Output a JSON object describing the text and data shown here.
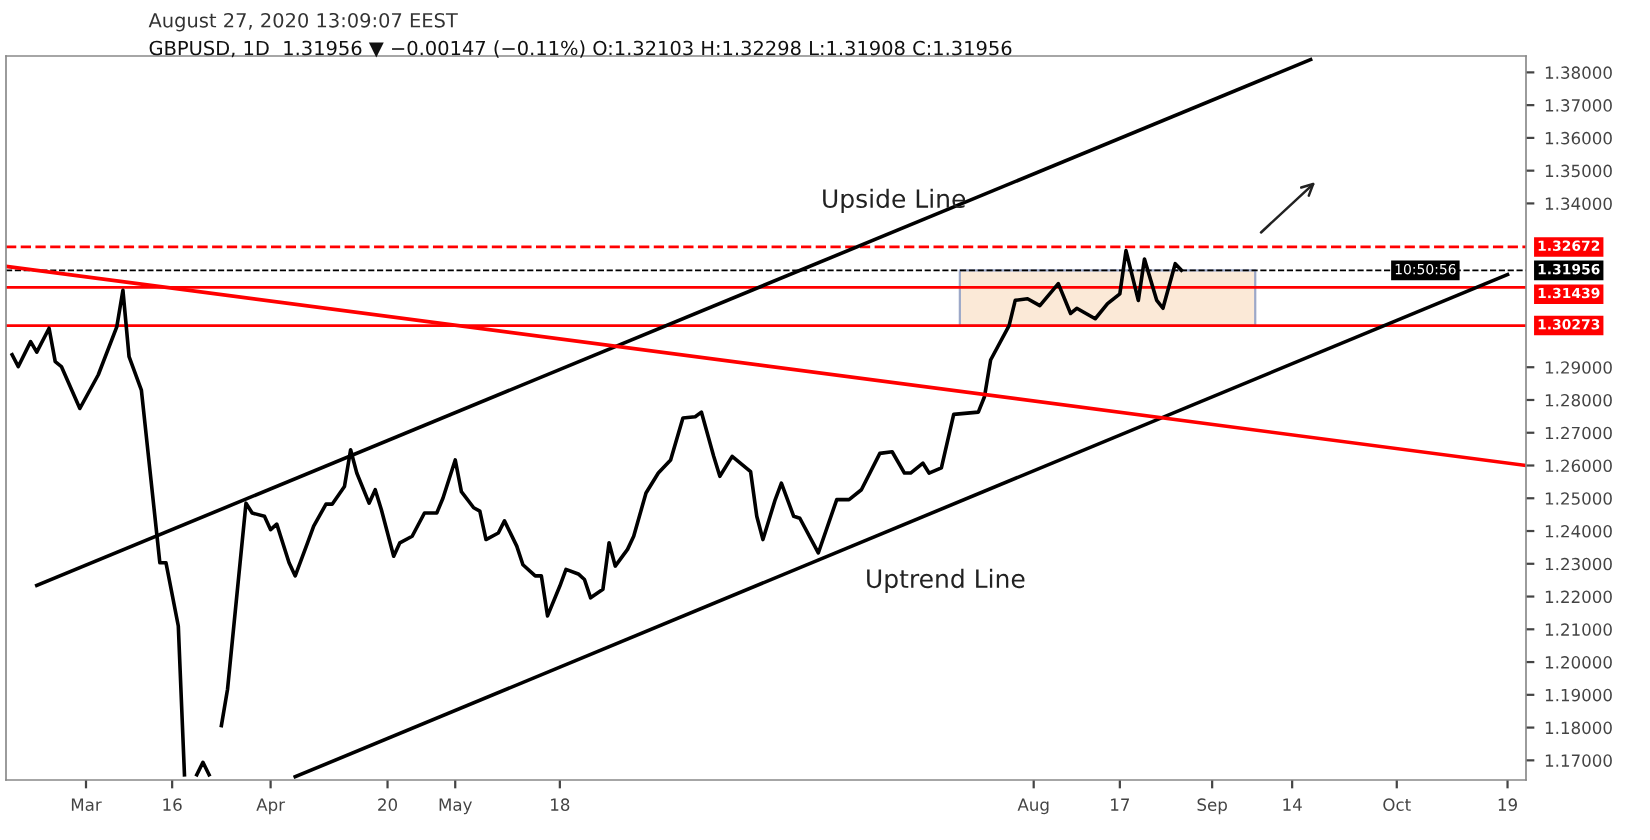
{
  "chart_data": {
    "type": "line",
    "title": "GBPUSD, 1D  1.31956 ▼ −0.00147 (−0.11%) O:1.32103 H:1.32298 L:1.31908 C:1.31956",
    "subtitle": "August 27, 2020 13:09:07 EEST",
    "series": [
      {
        "color": "#000000",
        "x": [
          "2020-02-19",
          "2020-02-20",
          "2020-02-22",
          "2020-02-23",
          "2020-02-25",
          "2020-02-26",
          "2020-02-27",
          "2020-03-01",
          "2020-03-04",
          "2020-03-07",
          "2020-03-08",
          "2020-03-09",
          "2020-03-11",
          "2020-03-14",
          "2020-03-15",
          "2020-03-17",
          "2020-03-18",
          "2020-03-19",
          "2020-03-20",
          "2020-03-21",
          "2020-03-22",
          "2020-03-23",
          "2020-03-24",
          "2020-03-25",
          "2020-03-28",
          "2020-03-29",
          "2020-03-31",
          "2020-04-01",
          "2020-04-02",
          "2020-04-04",
          "2020-04-05",
          "2020-04-07",
          "2020-04-08",
          "2020-04-10",
          "2020-04-11",
          "2020-04-13",
          "2020-04-14",
          "2020-04-15",
          "2020-04-17",
          "2020-04-18",
          "2020-04-19",
          "2020-04-21",
          "2020-04-22",
          "2020-04-24",
          "2020-04-26",
          "2020-04-28",
          "2020-04-29",
          "2020-05-01",
          "2020-05-02",
          "2020-05-04",
          "2020-05-05",
          "2020-05-06",
          "2020-05-08",
          "2020-05-09",
          "2020-05-11",
          "2020-05-12",
          "2020-05-14",
          "2020-05-15",
          "2020-05-16",
          "2020-05-18",
          "2020-05-19",
          "2020-05-21",
          "2020-05-22",
          "2020-05-23",
          "2020-05-25",
          "2020-05-26",
          "2020-05-27",
          "2020-05-29",
          "2020-05-30",
          "2020-06-01",
          "2020-06-03",
          "2020-06-05",
          "2020-06-07",
          "2020-06-09",
          "2020-06-10",
          "2020-06-12",
          "2020-06-13",
          "2020-06-15",
          "2020-06-18",
          "2020-06-19",
          "2020-06-20",
          "2020-06-22",
          "2020-06-23",
          "2020-06-25",
          "2020-06-26",
          "2020-06-29",
          "2020-07-02",
          "2020-07-04",
          "2020-07-06",
          "2020-07-09",
          "2020-07-11",
          "2020-07-13",
          "2020-07-14",
          "2020-07-16",
          "2020-07-17",
          "2020-07-19",
          "2020-07-21",
          "2020-07-25",
          "2020-07-26",
          "2020-07-27",
          "2020-07-30",
          "2020-07-31",
          "2020-08-02",
          "2020-08-04",
          "2020-08-07",
          "2020-08-09",
          "2020-08-10",
          "2020-08-13",
          "2020-08-15",
          "2020-08-17",
          "2020-08-18",
          "2020-08-20",
          "2020-08-21",
          "2020-08-23",
          "2020-08-24",
          "2020-08-26",
          "2020-08-27"
        ],
        "values": [
          1.2938,
          1.2902,
          1.2978,
          1.2946,
          1.3019,
          1.2917,
          1.2902,
          1.2774,
          1.2877,
          1.3023,
          1.3135,
          1.2932,
          1.283,
          1.2303,
          1.2303,
          1.211,
          1.1656,
          null,
          1.1656,
          1.1694,
          1.1656,
          null,
          1.1806,
          1.1917,
          1.2485,
          1.2455,
          1.2445,
          1.2404,
          1.2421,
          1.2303,
          1.2263,
          1.2364,
          1.2415,
          1.2482,
          1.2482,
          1.2536,
          1.2648,
          1.2577,
          1.2485,
          1.2526,
          1.2465,
          1.2323,
          1.2364,
          1.2384,
          1.2455,
          1.2455,
          1.25,
          1.2617,
          1.252,
          1.2471,
          1.2461,
          1.2374,
          1.2394,
          1.2431,
          1.2354,
          1.2297,
          1.2263,
          1.2263,
          1.2141,
          1.2232,
          1.2283,
          1.2269,
          1.2252,
          1.2196,
          1.2222,
          1.2364,
          1.2293,
          1.2344,
          1.2384,
          1.2516,
          1.2577,
          1.2617,
          1.2745,
          1.2749,
          1.2763,
          1.2628,
          1.2567,
          1.2628,
          1.2581,
          1.2445,
          1.2374,
          1.2496,
          1.2546,
          1.2445,
          1.2439,
          1.2333,
          1.2496,
          1.2496,
          1.2526,
          1.2637,
          1.2642,
          1.2577,
          1.2577,
          1.2607,
          1.2577,
          1.2593,
          1.2756,
          1.2763,
          1.281,
          1.2922,
          1.3027,
          1.3104,
          1.3109,
          1.3088,
          1.3155,
          1.3064,
          1.308,
          1.3048,
          1.3094,
          1.3124,
          1.3256,
          1.3104,
          1.323,
          1.3104,
          1.308,
          1.3216,
          1.3196
        ]
      },
      {
        "type": "line",
        "color": "#000000",
        "x": [
          "2020-02-23",
          "2020-09-17"
        ],
        "values": [
          1.2234,
          1.3839
        ]
      },
      {
        "type": "line",
        "color": "#000000",
        "x": [
          "2020-04-05",
          "2020-10-19"
        ],
        "values": [
          1.165,
          1.3183
        ]
      },
      {
        "type": "line",
        "color": "#ff0000",
        "x": [
          "2020-02-18",
          "2020-10-22"
        ],
        "values": [
          1.3208,
          1.26
        ]
      }
    ],
    "xlim": [
      "2020-02-18",
      "2020-10-22"
    ],
    "xticks": [
      {
        "value": "2020-03-02",
        "label": "Mar"
      },
      {
        "value": "2020-03-16",
        "label": "16"
      },
      {
        "value": "2020-04-01",
        "label": "Apr"
      },
      {
        "value": "2020-04-20",
        "label": "20"
      },
      {
        "value": "2020-05-01",
        "label": "May"
      },
      {
        "value": "2020-05-18",
        "label": "18"
      },
      {
        "value": "2020-08-03",
        "label": "Aug"
      },
      {
        "value": "2020-08-17",
        "label": "17"
      },
      {
        "value": "2020-09-01",
        "label": "Sep"
      },
      {
        "value": "2020-09-14",
        "label": "14"
      },
      {
        "value": "2020-10-01",
        "label": "Oct"
      },
      {
        "value": "2020-10-19",
        "label": "19"
      }
    ],
    "ylim": [
      1.164,
      1.385
    ],
    "yticks": [
      {
        "value": 1.17,
        "label": "1.17000"
      },
      {
        "value": 1.18,
        "label": "1.18000"
      },
      {
        "value": 1.19,
        "label": "1.19000"
      },
      {
        "value": 1.2,
        "label": "1.20000"
      },
      {
        "value": 1.21,
        "label": "1.21000"
      },
      {
        "value": 1.22,
        "label": "1.22000"
      },
      {
        "value": 1.23,
        "label": "1.23000"
      },
      {
        "value": 1.24,
        "label": "1.24000"
      },
      {
        "value": 1.25,
        "label": "1.25000"
      },
      {
        "value": 1.26,
        "label": "1.26000"
      },
      {
        "value": 1.27,
        "label": "1.27000"
      },
      {
        "value": 1.28,
        "label": "1.28000"
      },
      {
        "value": 1.29,
        "label": "1.29000"
      },
      {
        "value": 1.34,
        "label": "1.34000"
      },
      {
        "value": 1.35,
        "label": "1.35000"
      },
      {
        "value": 1.36,
        "label": "1.36000"
      },
      {
        "value": 1.37,
        "label": "1.37000"
      },
      {
        "value": 1.38,
        "label": "1.38000"
      }
    ],
    "ref_lines": [
      {
        "axis": "y",
        "value": 1.32672,
        "label": "1.32672",
        "color": "#ff0000",
        "line_style": "dashed"
      },
      {
        "axis": "y",
        "value": 1.31956,
        "label": "1.31956",
        "color": "#000000",
        "line_style": "dashed"
      },
      {
        "axis": "y",
        "value": 1.31439,
        "label": "1.31439",
        "color": "#ff0000",
        "line_style": "solid"
      },
      {
        "axis": "y",
        "value": 1.30273,
        "label": "1.30273",
        "color": "#ff0000",
        "line_style": "solid"
      }
    ],
    "bands": [
      {
        "axis": "x",
        "from": "2020-07-22",
        "to": "2020-09-08",
        "color": "#fbe9d7"
      }
    ],
    "annotations": [
      "10:50:56",
      "Upside Line",
      "Uptrend Line"
    ],
    "grid": false,
    "legend": false
  }
}
